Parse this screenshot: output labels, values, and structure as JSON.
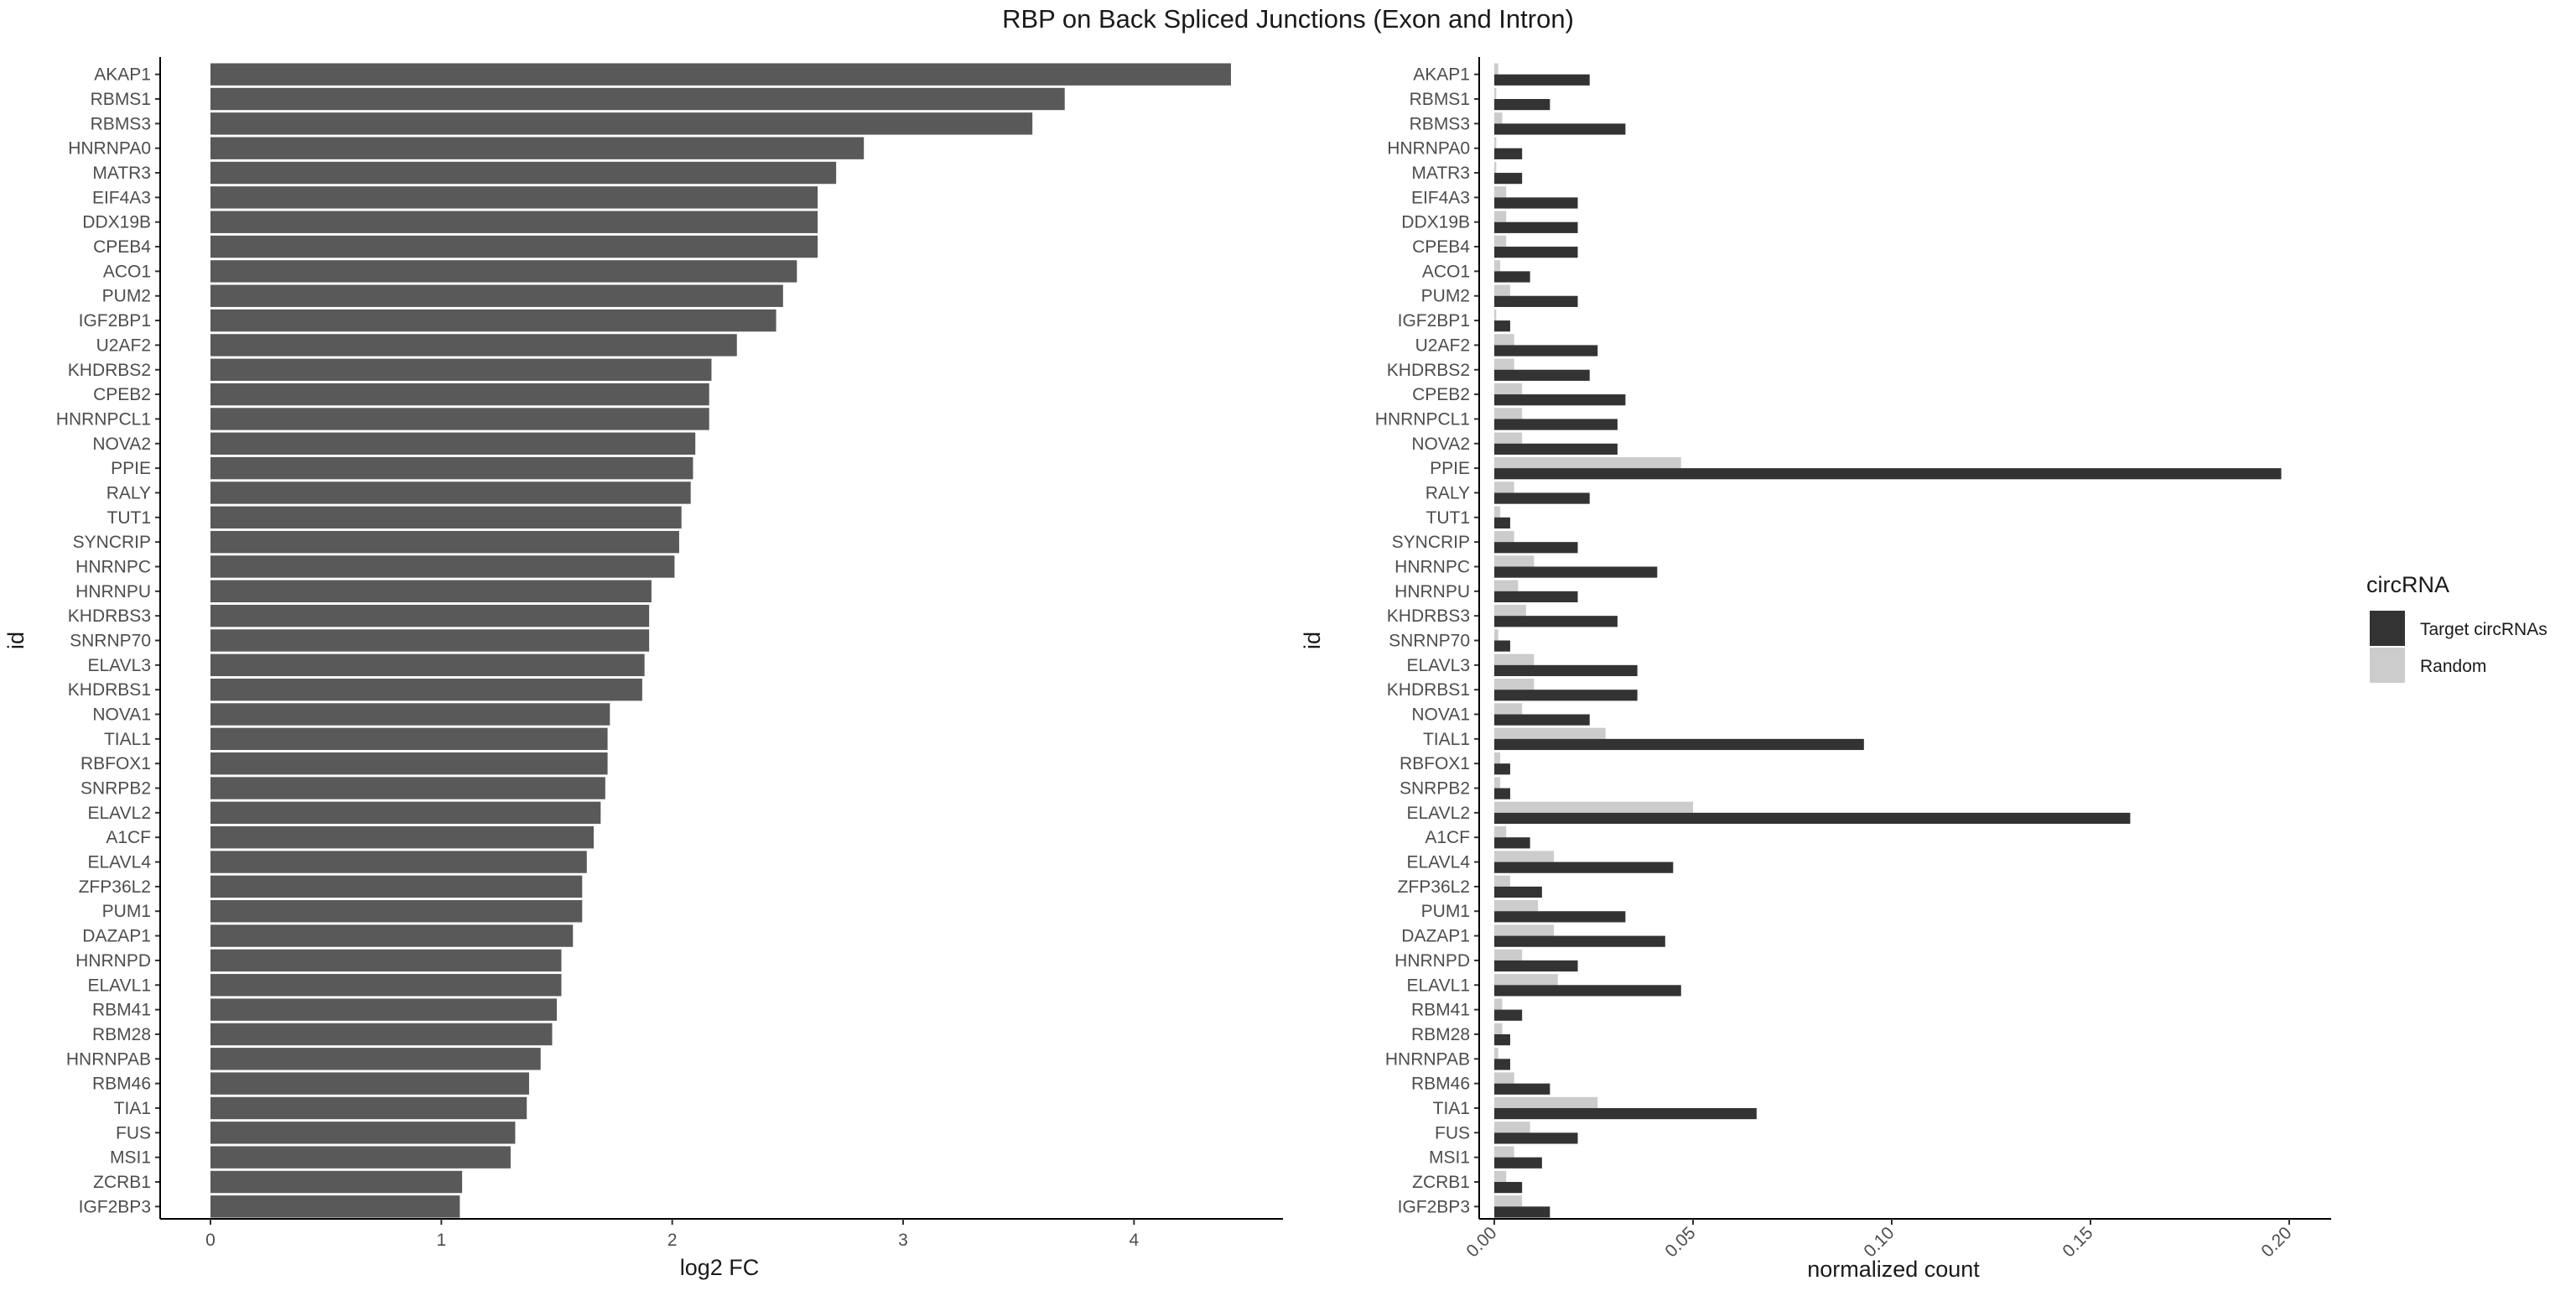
{
  "title": "RBP on Back Spliced Junctions (Exon and Intron)",
  "colors": {
    "log2fc_bar": "#595959",
    "target": "#333333",
    "random": "#cccccc",
    "axis": "#000000",
    "tick_text": "#4d4d4d"
  },
  "chart_data": [
    {
      "type": "bar",
      "orientation": "horizontal",
      "title": "",
      "xlabel": "log2 FC",
      "ylabel": "id",
      "xlim": [
        0,
        4.5
      ],
      "x_ticks": [
        0,
        1,
        2,
        3,
        4
      ],
      "grid": false,
      "categories": [
        "AKAP1",
        "RBMS1",
        "RBMS3",
        "HNRNPA0",
        "MATR3",
        "EIF4A3",
        "DDX19B",
        "CPEB4",
        "ACO1",
        "PUM2",
        "IGF2BP1",
        "U2AF2",
        "KHDRBS2",
        "CPEB2",
        "HNRNPCL1",
        "NOVA2",
        "PPIE",
        "RALY",
        "TUT1",
        "SYNCRIP",
        "HNRNPC",
        "HNRNPU",
        "KHDRBS3",
        "SNRNP70",
        "ELAVL3",
        "KHDRBS1",
        "NOVA1",
        "TIAL1",
        "RBFOX1",
        "SNRPB2",
        "ELAVL2",
        "A1CF",
        "ELAVL4",
        "ZFP36L2",
        "PUM1",
        "DAZAP1",
        "HNRNPD",
        "ELAVL1",
        "RBM41",
        "RBM28",
        "HNRNPAB",
        "RBM46",
        "TIA1",
        "FUS",
        "MSI1",
        "ZCRB1",
        "IGF2BP3"
      ],
      "values": [
        4.42,
        3.7,
        3.56,
        2.83,
        2.71,
        2.63,
        2.63,
        2.63,
        2.54,
        2.48,
        2.45,
        2.28,
        2.17,
        2.16,
        2.16,
        2.1,
        2.09,
        2.08,
        2.04,
        2.03,
        2.01,
        1.91,
        1.9,
        1.9,
        1.88,
        1.87,
        1.73,
        1.72,
        1.72,
        1.71,
        1.69,
        1.66,
        1.63,
        1.61,
        1.61,
        1.57,
        1.52,
        1.52,
        1.5,
        1.48,
        1.43,
        1.38,
        1.37,
        1.32,
        1.3,
        1.09,
        1.08
      ]
    },
    {
      "type": "bar",
      "orientation": "horizontal",
      "title": "",
      "xlabel": "normalized count",
      "ylabel": "id",
      "xlim": [
        0,
        0.2
      ],
      "x_ticks": [
        0.0,
        0.05,
        0.1,
        0.15,
        0.2
      ],
      "x_tick_labels": [
        "0.00",
        "0.05",
        "0.10",
        "0.15",
        "0.20"
      ],
      "grid": false,
      "legend_title": "circRNA",
      "legend_position": "right",
      "categories": [
        "AKAP1",
        "RBMS1",
        "RBMS3",
        "HNRNPA0",
        "MATR3",
        "EIF4A3",
        "DDX19B",
        "CPEB4",
        "ACO1",
        "PUM2",
        "IGF2BP1",
        "U2AF2",
        "KHDRBS2",
        "CPEB2",
        "HNRNPCL1",
        "NOVA2",
        "PPIE",
        "RALY",
        "TUT1",
        "SYNCRIP",
        "HNRNPC",
        "HNRNPU",
        "KHDRBS3",
        "SNRNP70",
        "ELAVL3",
        "KHDRBS1",
        "NOVA1",
        "TIAL1",
        "RBFOX1",
        "SNRPB2",
        "ELAVL2",
        "A1CF",
        "ELAVL4",
        "ZFP36L2",
        "PUM1",
        "DAZAP1",
        "HNRNPD",
        "ELAVL1",
        "RBM41",
        "RBM28",
        "HNRNPAB",
        "RBM46",
        "TIA1",
        "FUS",
        "MSI1",
        "ZCRB1",
        "IGF2BP3"
      ],
      "series": [
        {
          "name": "Target circRNAs",
          "color": "#333333",
          "values": [
            0.024,
            0.014,
            0.033,
            0.007,
            0.007,
            0.021,
            0.021,
            0.021,
            0.009,
            0.021,
            0.004,
            0.026,
            0.024,
            0.033,
            0.031,
            0.031,
            0.198,
            0.024,
            0.004,
            0.021,
            0.041,
            0.021,
            0.031,
            0.004,
            0.036,
            0.036,
            0.024,
            0.093,
            0.004,
            0.004,
            0.16,
            0.009,
            0.045,
            0.012,
            0.033,
            0.043,
            0.021,
            0.047,
            0.007,
            0.004,
            0.004,
            0.014,
            0.066,
            0.021,
            0.012,
            0.007,
            0.014
          ]
        },
        {
          "name": "Random",
          "color": "#cccccc",
          "values": [
            0.001,
            0.0005,
            0.002,
            0.0005,
            0.0005,
            0.003,
            0.003,
            0.003,
            0.0015,
            0.004,
            0.0005,
            0.005,
            0.005,
            0.007,
            0.007,
            0.007,
            0.047,
            0.005,
            0.0015,
            0.005,
            0.01,
            0.006,
            0.008,
            0.001,
            0.01,
            0.01,
            0.007,
            0.028,
            0.0015,
            0.0015,
            0.05,
            0.003,
            0.015,
            0.004,
            0.011,
            0.015,
            0.007,
            0.016,
            0.002,
            0.002,
            0.001,
            0.005,
            0.026,
            0.009,
            0.005,
            0.003,
            0.007
          ]
        }
      ]
    }
  ]
}
